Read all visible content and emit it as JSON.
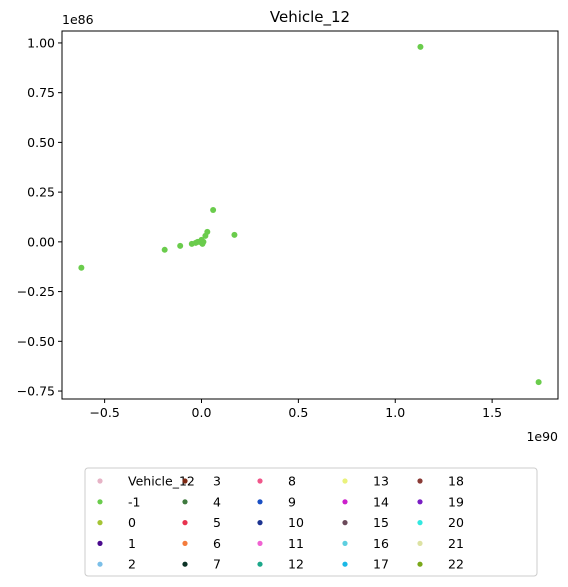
{
  "chart_data": {
    "type": "scatter",
    "title": "Vehicle_12",
    "xlabel": "",
    "ylabel": "",
    "x_scale_label": "1e90",
    "y_scale_label": "1e86",
    "xlim": [
      -0.72,
      1.84
    ],
    "ylim": [
      -0.79,
      1.06
    ],
    "x_ticks": [
      -0.5,
      0.0,
      0.5,
      1.0,
      1.5
    ],
    "x_tick_labels": [
      "−0.5",
      "0.0",
      "0.5",
      "1.0",
      "1.5"
    ],
    "y_ticks": [
      -0.75,
      -0.5,
      -0.25,
      0.0,
      0.25,
      0.5,
      0.75,
      1.0
    ],
    "y_tick_labels": [
      "−0.75",
      "−0.50",
      "−0.25",
      "0.00",
      "0.25",
      "0.50",
      "0.75",
      "1.00"
    ],
    "grid": false,
    "legend_position": "below",
    "series": [
      {
        "name": "Vehicle_12",
        "color": "#e6b3c6",
        "points": []
      },
      {
        "name": "-1",
        "color": "#6acc4c",
        "points": [
          [
            1.13,
            0.98
          ],
          [
            1.74,
            -0.705
          ],
          [
            -0.62,
            -0.13
          ],
          [
            -0.19,
            -0.04
          ],
          [
            -0.11,
            -0.02
          ],
          [
            0.06,
            0.16
          ],
          [
            0.17,
            0.035
          ],
          [
            0.03,
            0.05
          ],
          [
            0.02,
            0.03
          ],
          [
            0.0,
            0.01
          ],
          [
            -0.01,
            0.0
          ],
          [
            0.01,
            0.0
          ],
          [
            -0.03,
            -0.005
          ],
          [
            -0.05,
            -0.01
          ],
          [
            -0.02,
            0.0
          ],
          [
            0.005,
            -0.01
          ]
        ]
      },
      {
        "name": "0",
        "color": "#a5c435",
        "points": []
      },
      {
        "name": "1",
        "color": "#4b0b8e",
        "points": []
      },
      {
        "name": "2",
        "color": "#7bbfe8",
        "points": []
      },
      {
        "name": "3",
        "color": "#7d2a14",
        "points": []
      },
      {
        "name": "4",
        "color": "#3f7a3f",
        "points": []
      },
      {
        "name": "5",
        "color": "#e8334f",
        "points": []
      },
      {
        "name": "6",
        "color": "#f47c3c",
        "points": []
      },
      {
        "name": "7",
        "color": "#0c3326",
        "points": []
      },
      {
        "name": "8",
        "color": "#f0568a",
        "points": []
      },
      {
        "name": "9",
        "color": "#1a4fc4",
        "points": []
      },
      {
        "name": "10",
        "color": "#1c3491",
        "points": []
      },
      {
        "name": "11",
        "color": "#f062d2",
        "points": []
      },
      {
        "name": "12",
        "color": "#1ca88a",
        "points": []
      },
      {
        "name": "13",
        "color": "#eaf27c",
        "points": []
      },
      {
        "name": "14",
        "color": "#cc1fcc",
        "points": []
      },
      {
        "name": "15",
        "color": "#6b4a5a",
        "points": []
      },
      {
        "name": "16",
        "color": "#5ecfe0",
        "points": []
      },
      {
        "name": "17",
        "color": "#1ab8e6",
        "points": []
      },
      {
        "name": "18",
        "color": "#8a3b36",
        "points": []
      },
      {
        "name": "19",
        "color": "#7a1ec4",
        "points": []
      },
      {
        "name": "20",
        "color": "#32e8e0",
        "points": []
      },
      {
        "name": "21",
        "color": "#dde2a3",
        "points": []
      },
      {
        "name": "22",
        "color": "#7aa81a",
        "points": []
      }
    ]
  }
}
